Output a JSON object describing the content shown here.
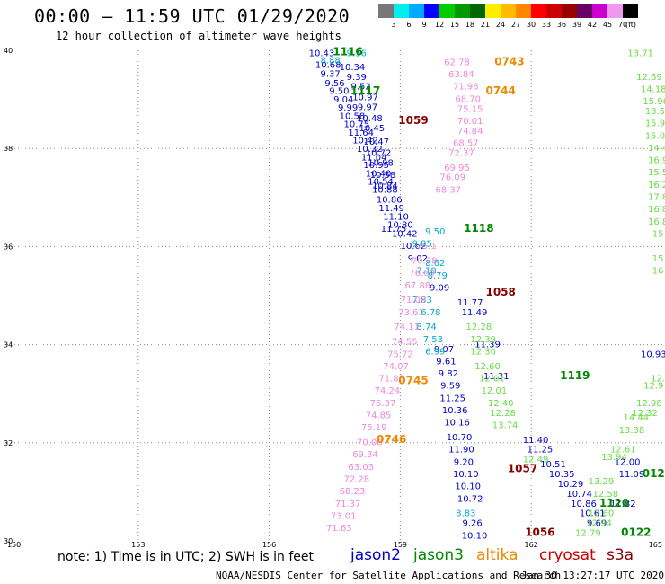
{
  "header": {
    "title": "00:00 – 11:59 UTC 01/29/2020",
    "subtitle": "12 hour collection of altimeter wave heights"
  },
  "footer": {
    "note": "note: 1) Time is in UTC; 2) SWH is in feet",
    "credit": "NOAA/NESDIS Center for Satellite Applications and Research",
    "timestamp": "Jan 30 13:27:17 UTC 2020"
  },
  "colors": {
    "jason2": "#0000cc",
    "jason3": "#008800",
    "altika": "#ee8800",
    "cryosat": "#cc0000",
    "s3a": "#880000",
    "track_blue_light": "#00aacc",
    "track_green_light": "#66dd44",
    "track_pink": "#ee88dd",
    "grid": "#888888"
  },
  "legend": {
    "satellites": [
      {
        "name": "jason2",
        "color": "#0000cc"
      },
      {
        "name": "jason3",
        "color": "#008800"
      },
      {
        "name": "altika",
        "color": "#ee8800"
      },
      {
        "name": "cryosat",
        "color": "#cc0000"
      },
      {
        "name": "s3a",
        "color": "#880000"
      }
    ],
    "colorbar_ticks": [
      "3",
      "6",
      "9",
      "12",
      "15",
      "18",
      "21",
      "24",
      "27",
      "30",
      "33",
      "36",
      "39",
      "42",
      "45",
      "70"
    ],
    "colorbar_unit": "(ft)",
    "colorbar_colors": [
      "#777777",
      "#00eeee",
      "#00aaff",
      "#0000ff",
      "#00cc00",
      "#009900",
      "#006600",
      "#ffee00",
      "#ffbb00",
      "#ff8800",
      "#ff0000",
      "#cc0000",
      "#990000",
      "#660066",
      "#cc00cc",
      "#ee99ee",
      "#000000"
    ]
  },
  "chart_data": {
    "type": "scatter",
    "title": "12 hour collection of altimeter wave heights",
    "xlim": [
      150,
      165
    ],
    "ylim": [
      30,
      40
    ],
    "x_ticks": [
      150,
      153,
      156,
      159,
      162,
      165
    ],
    "y_ticks": [
      30,
      32,
      34,
      36,
      38,
      40
    ],
    "grid": true,
    "pass_labels": [
      {
        "text": "1116",
        "lon": 157.8,
        "lat": 39.9,
        "color": "#008800"
      },
      {
        "text": "0743",
        "lon": 161.5,
        "lat": 39.7,
        "color": "#ee8800"
      },
      {
        "text": "1117",
        "lon": 158.2,
        "lat": 39.1,
        "color": "#008800"
      },
      {
        "text": "0744",
        "lon": 161.3,
        "lat": 39.1,
        "color": "#ee8800"
      },
      {
        "text": "1059",
        "lon": 159.3,
        "lat": 38.5,
        "color": "#880000"
      },
      {
        "text": "1118",
        "lon": 160.8,
        "lat": 36.3,
        "color": "#008800"
      },
      {
        "text": "0745",
        "lon": 159.3,
        "lat": 33.2,
        "color": "#ee8800"
      },
      {
        "text": "1058",
        "lon": 161.3,
        "lat": 35.0,
        "color": "#880000"
      },
      {
        "text": "1119",
        "lon": 163.0,
        "lat": 33.3,
        "color": "#008800"
      },
      {
        "text": "0746",
        "lon": 158.8,
        "lat": 32.0,
        "color": "#ee8800"
      },
      {
        "text": "1057",
        "lon": 161.8,
        "lat": 31.4,
        "color": "#880000"
      },
      {
        "text": "1120",
        "lon": 163.9,
        "lat": 30.7,
        "color": "#008800"
      },
      {
        "text": "1056",
        "lon": 162.2,
        "lat": 30.1,
        "color": "#880000"
      },
      {
        "text": "0122",
        "lon": 164.4,
        "lat": 30.1,
        "color": "#008800"
      },
      {
        "text": "012",
        "lon": 164.8,
        "lat": 31.3,
        "color": "#008800"
      }
    ],
    "series": [
      {
        "color": "#0000cc",
        "points": [
          {
            "lon": 157.2,
            "lat": 39.88,
            "v": "10.43"
          },
          {
            "lon": 157.35,
            "lat": 39.64,
            "v": "10.68"
          },
          {
            "lon": 157.4,
            "lat": 39.46,
            "v": "9.37"
          },
          {
            "lon": 157.5,
            "lat": 39.27,
            "v": "9.56"
          },
          {
            "lon": 157.6,
            "lat": 39.11,
            "v": "9.50"
          },
          {
            "lon": 157.7,
            "lat": 38.94,
            "v": "9.04"
          },
          {
            "lon": 157.8,
            "lat": 38.77,
            "v": "9.99"
          },
          {
            "lon": 157.9,
            "lat": 38.6,
            "v": "10.58"
          },
          {
            "lon": 158.0,
            "lat": 38.43,
            "v": "10.75"
          },
          {
            "lon": 158.1,
            "lat": 38.26,
            "v": "11.64"
          },
          {
            "lon": 158.2,
            "lat": 38.1,
            "v": "10.42"
          },
          {
            "lon": 158.3,
            "lat": 37.93,
            "v": "10.32"
          },
          {
            "lon": 158.4,
            "lat": 37.76,
            "v": "11.04"
          },
          {
            "lon": 158.45,
            "lat": 37.6,
            "v": "10.95"
          },
          {
            "lon": 158.5,
            "lat": 37.43,
            "v": "10.40"
          },
          {
            "lon": 158.55,
            "lat": 37.26,
            "v": "10.54"
          },
          {
            "lon": 158.65,
            "lat": 37.1,
            "v": "10.88"
          },
          {
            "lon": 158.8,
            "lat": 36.72,
            "v": "11.49"
          },
          {
            "lon": 158.9,
            "lat": 36.55,
            "v": "11.10"
          },
          {
            "lon": 159.0,
            "lat": 36.38,
            "v": "10.80"
          },
          {
            "lon": 159.1,
            "lat": 36.2,
            "v": "10.42"
          },
          {
            "lon": 159.3,
            "lat": 35.95,
            "v": "10.62"
          },
          {
            "lon": 159.4,
            "lat": 35.7,
            "v": "9.02"
          },
          {
            "lon": 159.9,
            "lat": 35.1,
            "v": "9.09"
          },
          {
            "lon": 160.6,
            "lat": 34.8,
            "v": "11.77"
          },
          {
            "lon": 160.7,
            "lat": 34.6,
            "v": "11.49"
          },
          {
            "lon": 161.0,
            "lat": 33.95,
            "v": "11.39"
          },
          {
            "lon": 161.2,
            "lat": 33.3,
            "v": "11.31"
          },
          {
            "lon": 160.0,
            "lat": 33.85,
            "v": "9.07"
          },
          {
            "lon": 160.05,
            "lat": 33.6,
            "v": "9.61"
          },
          {
            "lon": 160.1,
            "lat": 33.35,
            "v": "9.82"
          },
          {
            "lon": 160.15,
            "lat": 33.1,
            "v": "9.59"
          },
          {
            "lon": 160.2,
            "lat": 32.85,
            "v": "11.25"
          },
          {
            "lon": 160.25,
            "lat": 32.6,
            "v": "10.36"
          },
          {
            "lon": 160.3,
            "lat": 32.35,
            "v": "10.16"
          },
          {
            "lon": 160.35,
            "lat": 32.05,
            "v": "10.70"
          },
          {
            "lon": 160.4,
            "lat": 31.8,
            "v": "11.90"
          },
          {
            "lon": 160.45,
            "lat": 31.55,
            "v": "9.20"
          },
          {
            "lon": 160.5,
            "lat": 31.3,
            "v": "10.10"
          },
          {
            "lon": 160.55,
            "lat": 31.05,
            "v": "10.10"
          },
          {
            "lon": 160.6,
            "lat": 30.8,
            "v": "10.72"
          },
          {
            "lon": 160.65,
            "lat": 30.3,
            "v": "9.26"
          },
          {
            "lon": 160.7,
            "lat": 30.05,
            "v": "10.10"
          },
          {
            "lon": 162.1,
            "lat": 32.0,
            "v": "11.40"
          },
          {
            "lon": 162.2,
            "lat": 31.8,
            "v": "11.25"
          },
          {
            "lon": 162.5,
            "lat": 31.5,
            "v": "10.51"
          },
          {
            "lon": 162.7,
            "lat": 31.3,
            "v": "10.35"
          },
          {
            "lon": 162.9,
            "lat": 31.1,
            "v": "10.29"
          },
          {
            "lon": 163.1,
            "lat": 30.9,
            "v": "10.74"
          },
          {
            "lon": 163.2,
            "lat": 30.7,
            "v": "10.86"
          },
          {
            "lon": 163.4,
            "lat": 30.5,
            "v": "10.61"
          },
          {
            "lon": 163.5,
            "lat": 30.3,
            "v": "9.69"
          },
          {
            "lon": 164.2,
            "lat": 31.55,
            "v": "12.00"
          },
          {
            "lon": 164.3,
            "lat": 31.3,
            "v": "11.09"
          },
          {
            "lon": 164.1,
            "lat": 30.7,
            "v": "11.82"
          },
          {
            "lon": 157.9,
            "lat": 39.6,
            "v": "10.34"
          },
          {
            "lon": 158.0,
            "lat": 39.4,
            "v": "9.39"
          },
          {
            "lon": 158.1,
            "lat": 39.2,
            "v": "9.52"
          },
          {
            "lon": 158.2,
            "lat": 38.98,
            "v": "10.97"
          },
          {
            "lon": 158.25,
            "lat": 38.78,
            "v": "9.97"
          },
          {
            "lon": 158.3,
            "lat": 38.55,
            "v": "10.48"
          },
          {
            "lon": 158.35,
            "lat": 38.35,
            "v": "10.45"
          },
          {
            "lon": 158.45,
            "lat": 38.08,
            "v": "10.47"
          },
          {
            "lon": 158.5,
            "lat": 37.85,
            "v": "10.72"
          },
          {
            "lon": 158.55,
            "lat": 37.65,
            "v": "10.98"
          },
          {
            "lon": 158.6,
            "lat": 37.4,
            "v": "10.58"
          },
          {
            "lon": 158.65,
            "lat": 37.18,
            "v": "10.84"
          },
          {
            "lon": 158.75,
            "lat": 36.9,
            "v": "10.86"
          },
          {
            "lon": 158.85,
            "lat": 36.3,
            "v": "11.75"
          },
          {
            "lon": 164.8,
            "lat": 33.75,
            "v": "10.93"
          }
        ]
      },
      {
        "color": "#00aacc",
        "points": [
          {
            "lon": 157.4,
            "lat": 39.73,
            "v": "8.88"
          },
          {
            "lon": 158.0,
            "lat": 39.88,
            "v": "9.56"
          },
          {
            "lon": 159.8,
            "lat": 36.25,
            "v": "9.50"
          },
          {
            "lon": 159.5,
            "lat": 36.0,
            "v": "9.85"
          },
          {
            "lon": 159.8,
            "lat": 35.6,
            "v": "8.62"
          },
          {
            "lon": 159.85,
            "lat": 35.35,
            "v": "8.79"
          },
          {
            "lon": 159.6,
            "lat": 35.45,
            "v": "7.18"
          },
          {
            "lon": 159.5,
            "lat": 34.85,
            "v": "7.83"
          },
          {
            "lon": 159.7,
            "lat": 34.6,
            "v": "6.78"
          },
          {
            "lon": 159.6,
            "lat": 34.3,
            "v": "8.74"
          },
          {
            "lon": 159.75,
            "lat": 34.05,
            "v": "7.53"
          },
          {
            "lon": 159.8,
            "lat": 33.8,
            "v": "6.99"
          },
          {
            "lon": 160.5,
            "lat": 30.5,
            "v": "8.83"
          }
        ]
      },
      {
        "color": "#66dd44",
        "points": [
          {
            "lon": 164.5,
            "lat": 39.88,
            "v": "13.71"
          },
          {
            "lon": 164.7,
            "lat": 39.4,
            "v": "12.69"
          },
          {
            "lon": 164.8,
            "lat": 39.15,
            "v": "14.18"
          },
          {
            "lon": 164.85,
            "lat": 38.9,
            "v": "15.96"
          },
          {
            "lon": 164.9,
            "lat": 38.7,
            "v": "13.57"
          },
          {
            "lon": 164.9,
            "lat": 38.45,
            "v": "15.92"
          },
          {
            "lon": 164.9,
            "lat": 38.2,
            "v": "15.02"
          },
          {
            "lon": 164.9,
            "lat": 37.95,
            "v": "14.4"
          },
          {
            "lon": 164.9,
            "lat": 37.7,
            "v": "16.9"
          },
          {
            "lon": 164.9,
            "lat": 37.45,
            "v": "15.5"
          },
          {
            "lon": 164.9,
            "lat": 37.2,
            "v": "16.2"
          },
          {
            "lon": 164.9,
            "lat": 36.95,
            "v": "17.8"
          },
          {
            "lon": 164.9,
            "lat": 36.7,
            "v": "16.8"
          },
          {
            "lon": 164.9,
            "lat": 36.45,
            "v": "16.8"
          },
          {
            "lon": 164.9,
            "lat": 36.2,
            "v": "15"
          },
          {
            "lon": 164.9,
            "lat": 35.7,
            "v": "15"
          },
          {
            "lon": 164.9,
            "lat": 35.45,
            "v": "16"
          },
          {
            "lon": 160.8,
            "lat": 34.3,
            "v": "12.28"
          },
          {
            "lon": 160.9,
            "lat": 34.05,
            "v": "12.39"
          },
          {
            "lon": 160.9,
            "lat": 33.8,
            "v": "12.30"
          },
          {
            "lon": 161.0,
            "lat": 33.5,
            "v": "12.60"
          },
          {
            "lon": 161.1,
            "lat": 33.25,
            "v": "12.01"
          },
          {
            "lon": 161.15,
            "lat": 33.0,
            "v": "12.01"
          },
          {
            "lon": 161.3,
            "lat": 32.75,
            "v": "12.40"
          },
          {
            "lon": 161.35,
            "lat": 32.55,
            "v": "12.28"
          },
          {
            "lon": 161.4,
            "lat": 32.3,
            "v": "13.74"
          },
          {
            "lon": 162.1,
            "lat": 31.6,
            "v": "12.49"
          },
          {
            "lon": 163.6,
            "lat": 31.15,
            "v": "13.29"
          },
          {
            "lon": 163.7,
            "lat": 30.9,
            "v": "12.58"
          },
          {
            "lon": 163.6,
            "lat": 30.5,
            "v": "12.60"
          },
          {
            "lon": 163.55,
            "lat": 30.3,
            "v": "12.94"
          },
          {
            "lon": 163.3,
            "lat": 30.1,
            "v": "12.79"
          },
          {
            "lon": 164.1,
            "lat": 31.8,
            "v": "12.61"
          },
          {
            "lon": 163.9,
            "lat": 31.65,
            "v": "13.94"
          },
          {
            "lon": 164.3,
            "lat": 32.2,
            "v": "13.38"
          },
          {
            "lon": 164.4,
            "lat": 32.45,
            "v": "14.44"
          },
          {
            "lon": 164.6,
            "lat": 32.55,
            "v": "12.32"
          },
          {
            "lon": 164.7,
            "lat": 32.75,
            "v": "12.98"
          },
          {
            "lon": 164.8,
            "lat": 33.1,
            "v": "12.9"
          },
          {
            "lon": 164.9,
            "lat": 33.25,
            "v": "12."
          }
        ]
      },
      {
        "color": "#ee88dd",
        "points": [
          {
            "lon": 160.3,
            "lat": 39.7,
            "v": "62.78"
          },
          {
            "lon": 160.4,
            "lat": 39.45,
            "v": "63.84"
          },
          {
            "lon": 160.5,
            "lat": 39.2,
            "v": "71.98"
          },
          {
            "lon": 160.55,
            "lat": 38.95,
            "v": "68.70"
          },
          {
            "lon": 160.6,
            "lat": 38.75,
            "v": "75.15"
          },
          {
            "lon": 160.6,
            "lat": 38.5,
            "v": "70.01"
          },
          {
            "lon": 160.6,
            "lat": 38.3,
            "v": "74.84"
          },
          {
            "lon": 160.5,
            "lat": 38.05,
            "v": "68.57"
          },
          {
            "lon": 160.4,
            "lat": 37.85,
            "v": "72.37"
          },
          {
            "lon": 160.3,
            "lat": 37.55,
            "v": "69.95"
          },
          {
            "lon": 160.2,
            "lat": 37.35,
            "v": "76.09"
          },
          {
            "lon": 160.1,
            "lat": 37.1,
            "v": "68.37"
          },
          {
            "lon": 159.6,
            "lat": 35.95,
            "v": "75.1"
          },
          {
            "lon": 159.55,
            "lat": 35.65,
            "v": "70.38"
          },
          {
            "lon": 159.5,
            "lat": 35.4,
            "v": "76.60"
          },
          {
            "lon": 159.4,
            "lat": 35.15,
            "v": "67.88"
          },
          {
            "lon": 159.3,
            "lat": 34.85,
            "v": "71.09"
          },
          {
            "lon": 159.25,
            "lat": 34.6,
            "v": "73.61"
          },
          {
            "lon": 159.15,
            "lat": 34.3,
            "v": "74.11"
          },
          {
            "lon": 159.1,
            "lat": 34.0,
            "v": "74.55"
          },
          {
            "lon": 159.0,
            "lat": 33.75,
            "v": "75.72"
          },
          {
            "lon": 158.9,
            "lat": 33.5,
            "v": "74.07"
          },
          {
            "lon": 158.8,
            "lat": 33.25,
            "v": "71.83"
          },
          {
            "lon": 158.7,
            "lat": 33.0,
            "v": "74.24"
          },
          {
            "lon": 158.6,
            "lat": 32.75,
            "v": "76.37"
          },
          {
            "lon": 158.5,
            "lat": 32.5,
            "v": "74.85"
          },
          {
            "lon": 158.4,
            "lat": 32.25,
            "v": "75.19"
          },
          {
            "lon": 158.3,
            "lat": 31.95,
            "v": "70.08"
          },
          {
            "lon": 158.2,
            "lat": 31.7,
            "v": "69.34"
          },
          {
            "lon": 158.1,
            "lat": 31.45,
            "v": "63.03"
          },
          {
            "lon": 158.0,
            "lat": 31.2,
            "v": "72.28"
          },
          {
            "lon": 157.9,
            "lat": 30.95,
            "v": "68.23"
          },
          {
            "lon": 157.8,
            "lat": 30.7,
            "v": "71.37"
          },
          {
            "lon": 157.7,
            "lat": 30.45,
            "v": "73.01"
          },
          {
            "lon": 157.6,
            "lat": 30.2,
            "v": "71.63"
          }
        ]
      }
    ]
  }
}
